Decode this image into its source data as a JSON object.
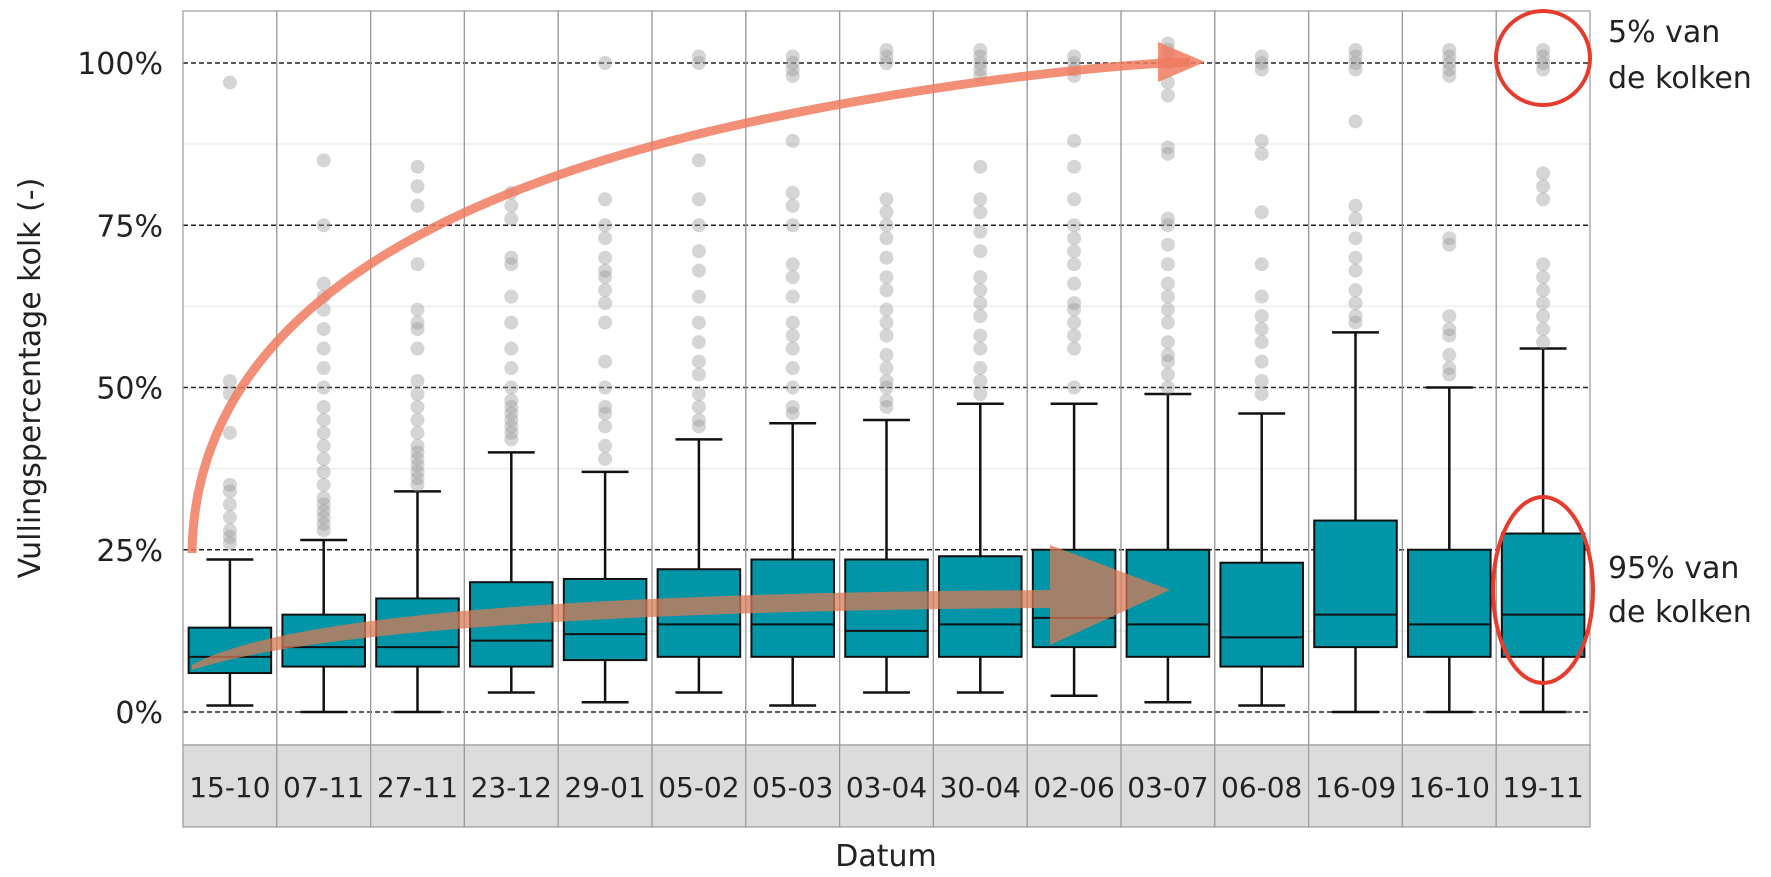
{
  "chart_data": {
    "type": "boxplot",
    "xlabel": "Datum",
    "ylabel": "Vullingspercentage kolk (-)",
    "ylim": [
      0,
      100
    ],
    "yticks": [
      0,
      25,
      50,
      75,
      100
    ],
    "ytick_labels": [
      "0%",
      "25%",
      "50%",
      "75%",
      "100%"
    ],
    "grid": true,
    "colors": {
      "box": "#0096a8",
      "whisker": "#111111",
      "outlier": "#9a9a9a",
      "arrow": "#f07b5e",
      "circle": "#e53c2e",
      "strip": "#dcdcdc"
    },
    "categories": [
      "15-10",
      "07-11",
      "27-11",
      "23-12",
      "29-01",
      "05-02",
      "05-03",
      "03-04",
      "30-04",
      "02-06",
      "03-07",
      "06-08",
      "16-09",
      "16-10",
      "19-11"
    ],
    "boxes": [
      {
        "category": "15-10",
        "whisker_low": 1,
        "q1": 6,
        "median": 8.5,
        "q3": 13,
        "whisker_high": 23.5,
        "outliers": [
          26,
          27,
          28,
          30,
          32,
          34,
          35,
          43,
          49,
          51,
          97
        ]
      },
      {
        "category": "07-11",
        "whisker_low": 0,
        "q1": 7,
        "median": 10,
        "q3": 15,
        "whisker_high": 26.5,
        "outliers": [
          28,
          29,
          30,
          31,
          32,
          33,
          35,
          37,
          39,
          41,
          43,
          45,
          47,
          50,
          53,
          56,
          59,
          62,
          64,
          66,
          75,
          85
        ]
      },
      {
        "category": "27-11",
        "whisker_low": 0,
        "q1": 7,
        "median": 10,
        "q3": 17.5,
        "whisker_high": 34,
        "outliers": [
          35,
          36,
          37,
          38,
          39,
          40,
          41,
          43,
          45,
          47,
          49,
          51,
          56,
          59,
          60,
          62,
          69,
          78,
          81,
          84
        ]
      },
      {
        "category": "23-12",
        "whisker_low": 3,
        "q1": 7,
        "median": 11,
        "q3": 20,
        "whisker_high": 40,
        "outliers": [
          42,
          43,
          44,
          45,
          46,
          47,
          48,
          50,
          53,
          56,
          60,
          64,
          69,
          70,
          76,
          78,
          80
        ]
      },
      {
        "category": "29-01",
        "whisker_low": 1.5,
        "q1": 8,
        "median": 12,
        "q3": 20.5,
        "whisker_high": 37,
        "outliers": [
          39,
          41,
          44,
          46,
          47,
          50,
          54,
          60,
          63,
          65,
          67,
          68,
          70,
          73,
          75,
          79,
          100
        ]
      },
      {
        "category": "05-02",
        "whisker_low": 3,
        "q1": 8.5,
        "median": 13.5,
        "q3": 22,
        "whisker_high": 42,
        "outliers": [
          44,
          45,
          47,
          49,
          52,
          54,
          57,
          60,
          64,
          68,
          71,
          75,
          79,
          85,
          100,
          101
        ]
      },
      {
        "category": "05-03",
        "whisker_low": 1,
        "q1": 8.5,
        "median": 13.5,
        "q3": 23.5,
        "whisker_high": 44.5,
        "outliers": [
          46,
          47,
          50,
          53,
          56,
          58,
          60,
          64,
          67,
          69,
          75,
          78,
          80,
          88,
          98,
          99,
          100,
          101
        ]
      },
      {
        "category": "03-04",
        "whisker_low": 3,
        "q1": 8.5,
        "median": 12.5,
        "q3": 23.5,
        "whisker_high": 45,
        "outliers": [
          47,
          48,
          50,
          51,
          53,
          55,
          58,
          60,
          62,
          65,
          67,
          70,
          73,
          75,
          77,
          79,
          100,
          101,
          102
        ]
      },
      {
        "category": "30-04",
        "whisker_low": 3,
        "q1": 8.5,
        "median": 13.5,
        "q3": 24,
        "whisker_high": 47.5,
        "outliers": [
          49,
          51,
          53,
          56,
          58,
          61,
          63,
          65,
          67,
          71,
          74,
          77,
          79,
          84,
          98,
          99,
          100,
          101,
          102
        ]
      },
      {
        "category": "02-06",
        "whisker_low": 2.5,
        "q1": 10,
        "median": 14.5,
        "q3": 25,
        "whisker_high": 47.5,
        "outliers": [
          50,
          56,
          58,
          60,
          62,
          63,
          66,
          69,
          71,
          73,
          75,
          79,
          84,
          88,
          98,
          99,
          100,
          101
        ]
      },
      {
        "category": "03-07",
        "whisker_low": 1.5,
        "q1": 8.5,
        "median": 13.5,
        "q3": 25,
        "whisker_high": 49,
        "outliers": [
          50,
          52,
          54,
          55,
          57,
          60,
          62,
          64,
          66,
          69,
          72,
          75,
          76,
          86,
          87,
          95,
          97,
          100,
          101,
          102,
          103
        ]
      },
      {
        "category": "06-08",
        "whisker_low": 1,
        "q1": 7,
        "median": 11.5,
        "q3": 23,
        "whisker_high": 46,
        "outliers": [
          49,
          51,
          54,
          57,
          59,
          61,
          64,
          69,
          77,
          86,
          88,
          99,
          100,
          101
        ]
      },
      {
        "category": "16-09",
        "whisker_low": 0,
        "q1": 10,
        "median": 15,
        "q3": 29.5,
        "whisker_high": 58.5,
        "outliers": [
          60,
          61,
          63,
          65,
          68,
          70,
          73,
          76,
          78,
          91,
          99,
          100,
          101,
          102
        ]
      },
      {
        "category": "16-10",
        "whisker_low": 0,
        "q1": 8.5,
        "median": 13.5,
        "q3": 25,
        "whisker_high": 50,
        "outliers": [
          52,
          53,
          55,
          58,
          59,
          61,
          72,
          73,
          98,
          99,
          100,
          101,
          102
        ]
      },
      {
        "category": "19-11",
        "whisker_low": 0,
        "q1": 8.5,
        "median": 15,
        "q3": 27.5,
        "whisker_high": 56,
        "outliers": [
          57,
          59,
          61,
          63,
          65,
          67,
          69,
          79,
          81,
          83,
          99,
          100,
          101,
          102
        ]
      }
    ],
    "annotations": [
      {
        "line1": "5% van",
        "line2": "de kolken"
      },
      {
        "line1": "95% van",
        "line2": "de kolken"
      }
    ]
  }
}
